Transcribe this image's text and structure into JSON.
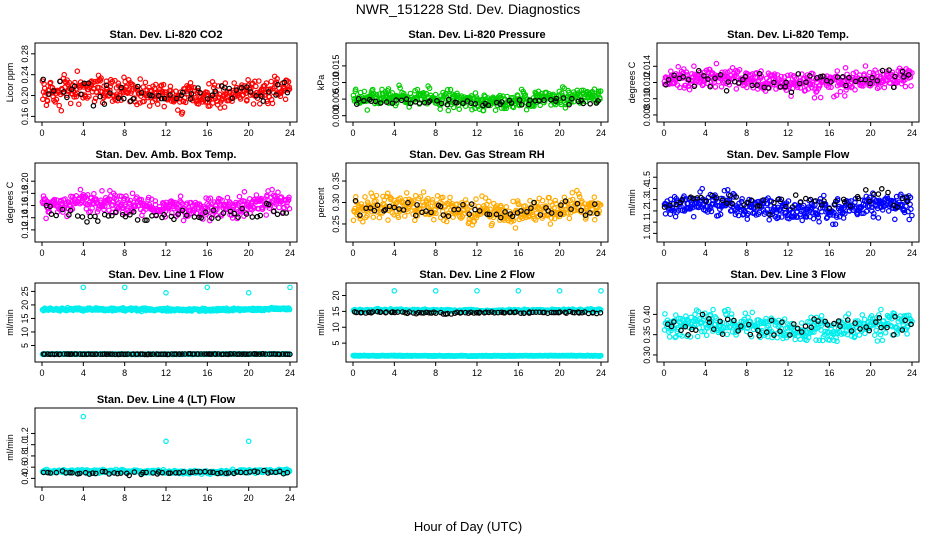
{
  "figure": {
    "title": "NWR_151228  Std. Dev. Diagnostics",
    "xlabel": "Hour of Day (UTC)"
  },
  "chart_data": [
    {
      "type": "scatter",
      "title": "Stan. Dev. Li-820 CO2",
      "ylabel": "Licor ppm",
      "xlim": [
        0,
        24
      ],
      "ylim": [
        0.155,
        0.295
      ],
      "xticks": [
        "0",
        "4",
        "8",
        "12",
        "16",
        "20",
        "24"
      ],
      "yticks": [
        "0.16",
        "0.20",
        "0.24",
        "0.28"
      ],
      "ytick_values": [
        0.16,
        0.2,
        0.24,
        0.28
      ],
      "series": [
        {
          "color": "#ff0000",
          "center": 0.205,
          "spread": 0.025,
          "min": 0.16,
          "max": 0.29,
          "n": 420
        },
        {
          "color": "#000000",
          "center": 0.205,
          "spread": 0.02,
          "min": 0.17,
          "max": 0.25,
          "n": 55
        }
      ]
    },
    {
      "type": "scatter",
      "title": "Stan. Dev. Li-820 Pressure",
      "ylabel": "kPa",
      "xlim": [
        0,
        24
      ],
      "ylim": [
        -0.001,
        0.021
      ],
      "xticks": [
        "0",
        "4",
        "8",
        "12",
        "16",
        "20",
        "24"
      ],
      "yticks": [
        "0.000",
        "0.005",
        "0.010",
        "0.015"
      ],
      "ytick_values": [
        0,
        0.005,
        0.01,
        0.015
      ],
      "series": [
        {
          "color": "#00cc00",
          "center": 0.005,
          "spread": 0.0025,
          "min": 0.001,
          "max": 0.019,
          "n": 420
        },
        {
          "color": "#000000",
          "center": 0.004,
          "spread": 0.0012,
          "min": 0.002,
          "max": 0.008,
          "n": 55
        }
      ]
    },
    {
      "type": "scatter",
      "title": "Stan. Dev. Li-820 Temp.",
      "ylabel": "degrees C",
      "xlim": [
        0,
        24
      ],
      "ylim": [
        0.0075,
        0.0165
      ],
      "xticks": [
        "0",
        "4",
        "8",
        "12",
        "16",
        "20",
        "24"
      ],
      "yticks": [
        "0.008",
        "0.010",
        "0.012",
        "0.014"
      ],
      "ytick_values": [
        0.008,
        0.01,
        0.012,
        0.014
      ],
      "series": [
        {
          "color": "#ff00ff",
          "center": 0.0122,
          "spread": 0.0013,
          "min": 0.008,
          "max": 0.016,
          "n": 420
        },
        {
          "color": "#000000",
          "center": 0.0122,
          "spread": 0.001,
          "min": 0.009,
          "max": 0.015,
          "n": 55
        }
      ]
    },
    {
      "type": "scatter",
      "title": "Stan. Dev. Amb. Box Temp.",
      "ylabel": "degrees C",
      "xlim": [
        0,
        24
      ],
      "ylim": [
        0.105,
        0.225
      ],
      "xticks": [
        "0",
        "4",
        "8",
        "12",
        "16",
        "20",
        "24"
      ],
      "yticks": [
        "0.12",
        "0.14",
        "0.16",
        "0.18",
        "0.20"
      ],
      "ytick_values": [
        0.12,
        0.14,
        0.16,
        0.18,
        0.2
      ],
      "series": [
        {
          "color": "#ff00ff",
          "center": 0.16,
          "spread": 0.017,
          "min": 0.11,
          "max": 0.22,
          "n": 420
        },
        {
          "color": "#000000",
          "center": 0.145,
          "spread": 0.012,
          "min": 0.12,
          "max": 0.19,
          "n": 55
        }
      ]
    },
    {
      "type": "scatter",
      "title": "Stan. Dev. Gas Stream RH",
      "ylabel": "percent",
      "xlim": [
        0,
        24
      ],
      "ylim": [
        0.215,
        0.385
      ],
      "xticks": [
        "0",
        "4",
        "8",
        "12",
        "16",
        "20",
        "24"
      ],
      "yticks": [
        "0.25",
        "0.30",
        "0.35"
      ],
      "ytick_values": [
        0.25,
        0.3,
        0.35
      ],
      "series": [
        {
          "color": "#ffaa00",
          "center": 0.285,
          "spread": 0.027,
          "min": 0.22,
          "max": 0.38,
          "n": 420
        },
        {
          "color": "#000000",
          "center": 0.28,
          "spread": 0.02,
          "min": 0.24,
          "max": 0.33,
          "n": 55
        }
      ]
    },
    {
      "type": "scatter",
      "title": "Stan. Dev. Sample Flow",
      "ylabel": "ml/min",
      "xlim": [
        0,
        24
      ],
      "ylim": [
        0.95,
        1.6
      ],
      "xticks": [
        "0",
        "4",
        "8",
        "12",
        "16",
        "20",
        "24"
      ],
      "yticks": [
        "1.0",
        "1.1",
        "1.2",
        "1.3",
        "1.4",
        "1.5"
      ],
      "ytick_values": [
        1.0,
        1.1,
        1.2,
        1.3,
        1.4,
        1.5
      ],
      "series": [
        {
          "color": "#0000ff",
          "center": 1.23,
          "spread": 0.1,
          "min": 0.97,
          "max": 1.55,
          "n": 420
        },
        {
          "color": "#000000",
          "center": 1.28,
          "spread": 0.08,
          "min": 1.1,
          "max": 1.45,
          "n": 55
        }
      ]
    },
    {
      "type": "scatter",
      "title": "Stan. Dev. Line 1 Flow",
      "ylabel": "ml/min",
      "xlim": [
        0,
        24
      ],
      "ylim": [
        0,
        27
      ],
      "xticks": [
        "0",
        "4",
        "8",
        "12",
        "16",
        "20",
        "24"
      ],
      "yticks": [
        "5",
        "10",
        "15",
        "20",
        "25"
      ],
      "ytick_values": [
        5,
        10,
        15,
        20,
        25
      ],
      "series": [
        {
          "color": "#00eeee",
          "center": 18.3,
          "spread": 0.5,
          "min": 17,
          "max": 19.5,
          "n": 420
        },
        {
          "color": "#00eeee",
          "center": 1.8,
          "spread": 0.1,
          "min": 1.6,
          "max": 2.0,
          "n": 400
        },
        {
          "color": "#000000",
          "center": 1.8,
          "spread": 0.1,
          "min": 1.6,
          "max": 2.0,
          "n": 110
        }
      ],
      "outliers": [
        {
          "x": 4,
          "y": 26.5
        },
        {
          "x": 8,
          "y": 26.5
        },
        {
          "x": 12,
          "y": 24.5
        },
        {
          "x": 16,
          "y": 26.5
        },
        {
          "x": 20,
          "y": 24.5
        },
        {
          "x": 24,
          "y": 26.5
        }
      ]
    },
    {
      "type": "scatter",
      "title": "Stan. Dev. Line 2 Flow",
      "ylabel": "ml/min",
      "xlim": [
        0,
        24
      ],
      "ylim": [
        0,
        23
      ],
      "xticks": [
        "0",
        "4",
        "8",
        "12",
        "16",
        "20",
        "24"
      ],
      "yticks": [
        "5",
        "10",
        "15",
        "20"
      ],
      "ytick_values": [
        5,
        10,
        15,
        20
      ],
      "series": [
        {
          "color": "#00eeee",
          "center": 15.3,
          "spread": 0.35,
          "min": 14.5,
          "max": 16.5,
          "n": 420
        },
        {
          "color": "#00eeee",
          "center": 1.0,
          "spread": 0.1,
          "min": 0.8,
          "max": 1.2,
          "n": 400
        },
        {
          "color": "#000000",
          "center": 14.6,
          "spread": 0.3,
          "min": 14,
          "max": 15.5,
          "n": 90
        }
      ],
      "outliers": [
        {
          "x": 4,
          "y": 21.5
        },
        {
          "x": 8,
          "y": 21.5
        },
        {
          "x": 12,
          "y": 21.5
        },
        {
          "x": 16,
          "y": 21.5
        },
        {
          "x": 20,
          "y": 21.5
        },
        {
          "x": 24,
          "y": 21.5
        }
      ]
    },
    {
      "type": "scatter",
      "title": "Stan. Dev. Line 3 Flow",
      "ylabel": "ml/min",
      "xlim": [
        0,
        24
      ],
      "ylim": [
        0.29,
        0.47
      ],
      "xticks": [
        "0",
        "4",
        "8",
        "12",
        "16",
        "20",
        "24"
      ],
      "yticks": [
        "0.30",
        "0.35",
        "0.40"
      ],
      "ytick_values": [
        0.3,
        0.35,
        0.4
      ],
      "series": [
        {
          "color": "#00eeee",
          "center": 0.37,
          "spread": 0.03,
          "min": 0.295,
          "max": 0.465,
          "n": 420
        },
        {
          "color": "#000000",
          "center": 0.37,
          "spread": 0.025,
          "min": 0.31,
          "max": 0.45,
          "n": 55
        }
      ]
    },
    {
      "type": "scatter",
      "title": "Stan. Dev. Line 4 (LT) Flow",
      "ylabel": "ml/min",
      "xlim": [
        0,
        24
      ],
      "ylim": [
        0.3,
        1.6
      ],
      "xticks": [
        "0",
        "4",
        "8",
        "12",
        "16",
        "20",
        "24"
      ],
      "yticks": [
        "0.4",
        "0.6",
        "0.8",
        "1.0",
        "1.2"
      ],
      "ytick_values": [
        0.4,
        0.6,
        0.8,
        1.0,
        1.2
      ],
      "series": [
        {
          "color": "#00eeee",
          "center": 0.52,
          "spread": 0.03,
          "min": 0.45,
          "max": 0.62,
          "n": 420
        },
        {
          "color": "#000000",
          "center": 0.5,
          "spread": 0.03,
          "min": 0.42,
          "max": 0.6,
          "n": 60
        }
      ],
      "outliers": [
        {
          "x": 4,
          "y": 1.5
        },
        {
          "x": 12,
          "y": 1.06
        },
        {
          "x": 20,
          "y": 1.06
        }
      ]
    }
  ]
}
